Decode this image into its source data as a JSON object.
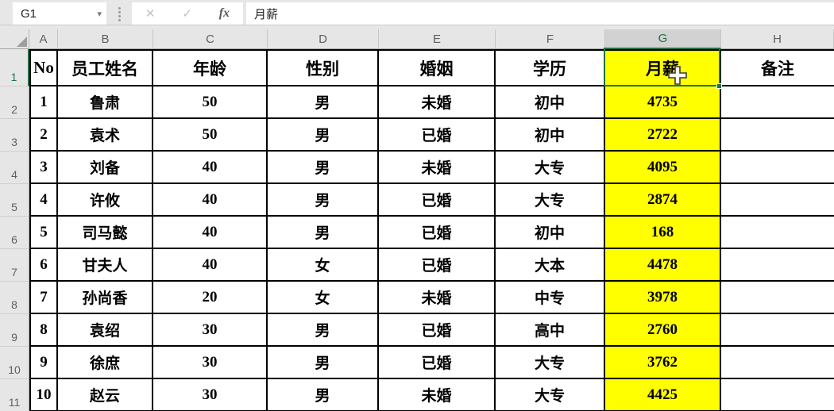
{
  "name_box": {
    "value": "G1",
    "caret": "▾"
  },
  "formula_buttons": {
    "cancel": "✕",
    "enter": "✓",
    "fx": "fx"
  },
  "formula_bar": {
    "value": "月薪"
  },
  "columns": [
    "A",
    "B",
    "C",
    "D",
    "E",
    "F",
    "G",
    "H"
  ],
  "rows": [
    "1",
    "2",
    "3",
    "4",
    "5",
    "6",
    "7",
    "8",
    "9",
    "10",
    "11"
  ],
  "selection": {
    "cell_ref": "G1",
    "selected_column": "G",
    "selected_row": "1",
    "fill_color": "#FFFF00",
    "accent_green": "#1F7244"
  },
  "table": {
    "headers": [
      "No",
      "员工姓名",
      "年龄",
      "性别",
      "婚姻",
      "学历",
      "月薪",
      "备注"
    ],
    "data": [
      [
        "1",
        "鲁肃",
        "50",
        "男",
        "未婚",
        "初中",
        "4735",
        ""
      ],
      [
        "2",
        "袁术",
        "50",
        "男",
        "已婚",
        "初中",
        "2722",
        ""
      ],
      [
        "3",
        "刘备",
        "40",
        "男",
        "未婚",
        "大专",
        "4095",
        ""
      ],
      [
        "4",
        "许攸",
        "40",
        "男",
        "已婚",
        "大专",
        "2874",
        ""
      ],
      [
        "5",
        "司马懿",
        "40",
        "男",
        "已婚",
        "初中",
        "168",
        ""
      ],
      [
        "6",
        "甘夫人",
        "40",
        "女",
        "已婚",
        "大本",
        "4478",
        ""
      ],
      [
        "7",
        "孙尚香",
        "20",
        "女",
        "未婚",
        "中专",
        "3978",
        ""
      ],
      [
        "8",
        "袁绍",
        "30",
        "男",
        "已婚",
        "高中",
        "2760",
        ""
      ],
      [
        "9",
        "徐庶",
        "30",
        "男",
        "已婚",
        "大专",
        "3762",
        ""
      ],
      [
        "10",
        "赵云",
        "30",
        "男",
        "未婚",
        "大专",
        "4425",
        ""
      ]
    ]
  },
  "colors": {
    "accent_green": "#1F7244",
    "highlight_yellow": "#FFFF00",
    "header_bg": "#E6E6E6",
    "selected_header_bg": "#D2D2D2",
    "grid_border": "#000000"
  }
}
